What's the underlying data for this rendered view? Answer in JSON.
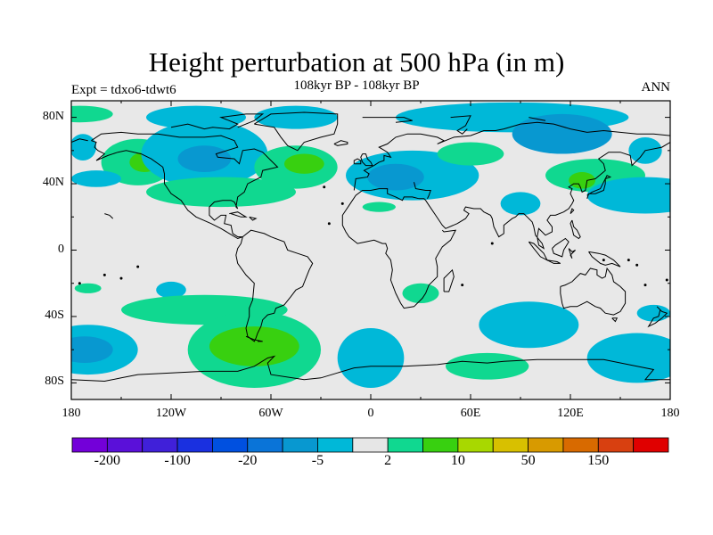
{
  "title": "Height perturbation at 500 hPa (in m)",
  "subtitle": "108kyr BP - 108kyr BP",
  "left_label": "Expt = tdxo6-tdwt6",
  "right_label": "ANN",
  "map": {
    "projection": "cylindrical equidistant",
    "lon_range": [
      -180,
      180
    ],
    "lat_range": [
      -90,
      90
    ],
    "x_ticks": [
      "180",
      "120W",
      "60W",
      "0",
      "60E",
      "120E",
      "180"
    ],
    "y_ticks": [
      "80N",
      "40N",
      "0",
      "40S",
      "80S"
    ],
    "background_color": "#e8e8e8",
    "coastline_color": "#000000"
  },
  "colorbar": {
    "colors": [
      "#7300d9",
      "#5a10d9",
      "#4020d9",
      "#1a30e0",
      "#0050e0",
      "#0a74d8",
      "#0898d0",
      "#00b8d8",
      "#e6e6e6",
      "#10d890",
      "#38d010",
      "#a8d800",
      "#d8c000",
      "#d89a00",
      "#d86a00",
      "#d84010",
      "#e00000"
    ],
    "tick_labels": [
      "-200",
      "-100",
      "-20",
      "-5",
      "2",
      "10",
      "50",
      "150"
    ]
  },
  "chart_data": {
    "type": "map",
    "title": "Height perturbation at 500 hPa (in m)",
    "levels_shown": [
      -200,
      -100,
      -20,
      -5,
      2,
      10,
      50,
      150
    ],
    "anomaly_regions": [
      {
        "lon": -175,
        "lat": 82,
        "rx": 20,
        "ry": 5,
        "level": "green"
      },
      {
        "lon": -105,
        "lat": 80,
        "rx": 30,
        "ry": 7,
        "level": "cyan"
      },
      {
        "lon": -45,
        "lat": 80,
        "rx": 25,
        "ry": 7,
        "level": "cyan"
      },
      {
        "lon": 85,
        "lat": 80,
        "rx": 70,
        "ry": 9,
        "level": "cyan"
      },
      {
        "lon": 115,
        "lat": 70,
        "rx": 30,
        "ry": 12,
        "level": "blue"
      },
      {
        "lon": -173,
        "lat": 62,
        "rx": 8,
        "ry": 8,
        "level": "cyan"
      },
      {
        "lon": -140,
        "lat": 53,
        "rx": 22,
        "ry": 14,
        "level": "green"
      },
      {
        "lon": -136,
        "lat": 53,
        "rx": 9,
        "ry": 6,
        "level": "lime"
      },
      {
        "lon": -100,
        "lat": 58,
        "rx": 38,
        "ry": 20,
        "level": "cyan"
      },
      {
        "lon": -100,
        "lat": 55,
        "rx": 16,
        "ry": 8,
        "level": "blue"
      },
      {
        "lon": -90,
        "lat": 35,
        "rx": 45,
        "ry": 9,
        "level": "green"
      },
      {
        "lon": -45,
        "lat": 50,
        "rx": 25,
        "ry": 13,
        "level": "green"
      },
      {
        "lon": -40,
        "lat": 52,
        "rx": 12,
        "ry": 6,
        "level": "lime"
      },
      {
        "lon": 25,
        "lat": 45,
        "rx": 40,
        "ry": 15,
        "level": "cyan"
      },
      {
        "lon": 15,
        "lat": 44,
        "rx": 17,
        "ry": 8,
        "level": "blue"
      },
      {
        "lon": 60,
        "lat": 58,
        "rx": 20,
        "ry": 7,
        "level": "green"
      },
      {
        "lon": 135,
        "lat": 45,
        "rx": 30,
        "ry": 10,
        "level": "green"
      },
      {
        "lon": 127,
        "lat": 42,
        "rx": 8,
        "ry": 5,
        "level": "lime"
      },
      {
        "lon": 165,
        "lat": 60,
        "rx": 10,
        "ry": 8,
        "level": "cyan"
      },
      {
        "lon": 165,
        "lat": 33,
        "rx": 35,
        "ry": 11,
        "level": "cyan"
      },
      {
        "lon": 90,
        "lat": 28,
        "rx": 12,
        "ry": 7,
        "level": "cyan"
      },
      {
        "lon": 5,
        "lat": 26,
        "rx": 10,
        "ry": 3,
        "level": "green"
      },
      {
        "lon": -165,
        "lat": 43,
        "rx": 15,
        "ry": 5,
        "level": "cyan"
      },
      {
        "lon": -120,
        "lat": -24,
        "rx": 9,
        "ry": 5,
        "level": "cyan"
      },
      {
        "lon": -170,
        "lat": -23,
        "rx": 8,
        "ry": 3,
        "level": "green"
      },
      {
        "lon": -100,
        "lat": -36,
        "rx": 50,
        "ry": 9,
        "level": "green"
      },
      {
        "lon": 30,
        "lat": -26,
        "rx": 11,
        "ry": 6,
        "level": "green"
      },
      {
        "lon": 95,
        "lat": -45,
        "rx": 30,
        "ry": 14,
        "level": "cyan"
      },
      {
        "lon": -170,
        "lat": -60,
        "rx": 30,
        "ry": 15,
        "level": "cyan"
      },
      {
        "lon": -172,
        "lat": -60,
        "rx": 17,
        "ry": 8,
        "level": "blue"
      },
      {
        "lon": -70,
        "lat": -60,
        "rx": 40,
        "ry": 23,
        "level": "green"
      },
      {
        "lon": -70,
        "lat": -58,
        "rx": 27,
        "ry": 12,
        "level": "lime"
      },
      {
        "lon": 0,
        "lat": -65,
        "rx": 20,
        "ry": 18,
        "level": "cyan"
      },
      {
        "lon": 70,
        "lat": -70,
        "rx": 25,
        "ry": 8,
        "level": "green"
      },
      {
        "lon": 160,
        "lat": -65,
        "rx": 30,
        "ry": 15,
        "level": "cyan"
      },
      {
        "lon": 170,
        "lat": -38,
        "rx": 10,
        "ry": 5,
        "level": "cyan"
      }
    ]
  }
}
